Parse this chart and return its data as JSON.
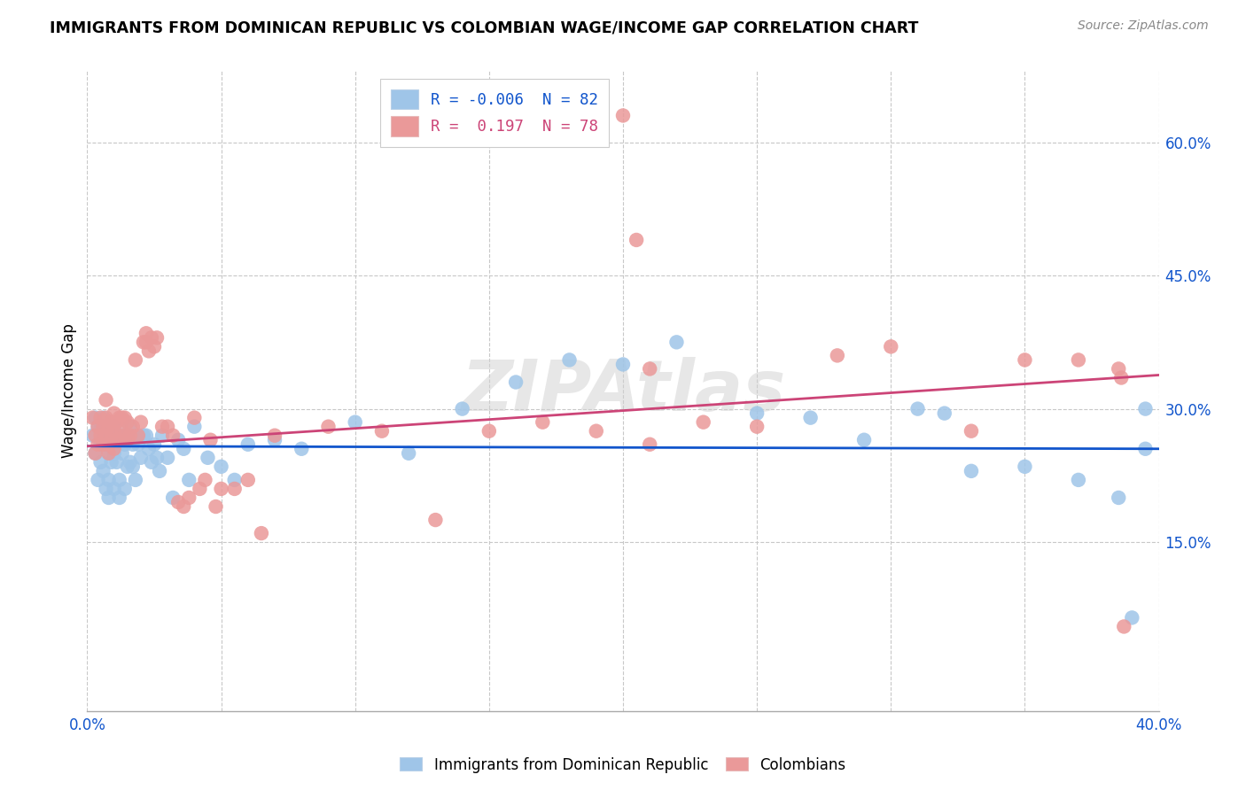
{
  "title": "IMMIGRANTS FROM DOMINICAN REPUBLIC VS COLOMBIAN WAGE/INCOME GAP CORRELATION CHART",
  "source": "Source: ZipAtlas.com",
  "ylabel": "Wage/Income Gap",
  "legend_blue_label": "Immigrants from Dominican Republic",
  "legend_pink_label": "Colombians",
  "blue_color": "#9fc5e8",
  "pink_color": "#ea9999",
  "blue_line_color": "#1155cc",
  "pink_line_color": "#cc4477",
  "blue_r": "-0.006",
  "blue_n": "82",
  "pink_r": "0.197",
  "pink_n": "78",
  "watermark": "ZIPAtlas",
  "blue_x": [
    0.002,
    0.003,
    0.003,
    0.004,
    0.004,
    0.005,
    0.005,
    0.005,
    0.006,
    0.006,
    0.006,
    0.007,
    0.007,
    0.007,
    0.008,
    0.008,
    0.008,
    0.008,
    0.009,
    0.009,
    0.009,
    0.01,
    0.01,
    0.01,
    0.011,
    0.011,
    0.012,
    0.012,
    0.012,
    0.013,
    0.013,
    0.014,
    0.014,
    0.015,
    0.015,
    0.016,
    0.016,
    0.017,
    0.017,
    0.018,
    0.018,
    0.019,
    0.02,
    0.021,
    0.022,
    0.023,
    0.024,
    0.025,
    0.026,
    0.027,
    0.028,
    0.03,
    0.032,
    0.034,
    0.036,
    0.038,
    0.04,
    0.045,
    0.05,
    0.055,
    0.06,
    0.07,
    0.08,
    0.1,
    0.12,
    0.14,
    0.16,
    0.18,
    0.2,
    0.22,
    0.25,
    0.27,
    0.29,
    0.31,
    0.32,
    0.33,
    0.35,
    0.37,
    0.385,
    0.39,
    0.395,
    0.395
  ],
  "blue_y": [
    0.27,
    0.29,
    0.25,
    0.28,
    0.22,
    0.28,
    0.24,
    0.26,
    0.27,
    0.23,
    0.29,
    0.26,
    0.28,
    0.21,
    0.27,
    0.25,
    0.22,
    0.2,
    0.26,
    0.27,
    0.24,
    0.28,
    0.25,
    0.21,
    0.27,
    0.24,
    0.265,
    0.22,
    0.2,
    0.27,
    0.25,
    0.26,
    0.21,
    0.27,
    0.235,
    0.28,
    0.24,
    0.26,
    0.235,
    0.27,
    0.22,
    0.26,
    0.245,
    0.27,
    0.27,
    0.255,
    0.24,
    0.26,
    0.245,
    0.23,
    0.27,
    0.245,
    0.2,
    0.265,
    0.255,
    0.22,
    0.28,
    0.245,
    0.235,
    0.22,
    0.26,
    0.265,
    0.255,
    0.285,
    0.25,
    0.3,
    0.33,
    0.355,
    0.35,
    0.375,
    0.295,
    0.29,
    0.265,
    0.3,
    0.295,
    0.23,
    0.235,
    0.22,
    0.2,
    0.065,
    0.3,
    0.255
  ],
  "pink_x": [
    0.002,
    0.003,
    0.003,
    0.004,
    0.004,
    0.005,
    0.005,
    0.006,
    0.006,
    0.007,
    0.007,
    0.007,
    0.008,
    0.008,
    0.008,
    0.009,
    0.009,
    0.01,
    0.01,
    0.01,
    0.011,
    0.011,
    0.012,
    0.012,
    0.013,
    0.013,
    0.014,
    0.014,
    0.015,
    0.015,
    0.016,
    0.017,
    0.018,
    0.019,
    0.02,
    0.021,
    0.022,
    0.022,
    0.023,
    0.024,
    0.025,
    0.026,
    0.028,
    0.03,
    0.032,
    0.034,
    0.036,
    0.038,
    0.04,
    0.042,
    0.044,
    0.046,
    0.048,
    0.05,
    0.055,
    0.06,
    0.065,
    0.07,
    0.09,
    0.11,
    0.13,
    0.15,
    0.17,
    0.19,
    0.21,
    0.23,
    0.25,
    0.28,
    0.3,
    0.33,
    0.35,
    0.37,
    0.385,
    0.386,
    0.387,
    0.2,
    0.205,
    0.21
  ],
  "pink_y": [
    0.29,
    0.27,
    0.25,
    0.28,
    0.26,
    0.29,
    0.27,
    0.28,
    0.26,
    0.29,
    0.27,
    0.31,
    0.28,
    0.26,
    0.25,
    0.285,
    0.27,
    0.295,
    0.275,
    0.255,
    0.285,
    0.265,
    0.29,
    0.265,
    0.29,
    0.275,
    0.27,
    0.29,
    0.285,
    0.265,
    0.27,
    0.28,
    0.355,
    0.27,
    0.285,
    0.375,
    0.375,
    0.385,
    0.365,
    0.38,
    0.37,
    0.38,
    0.28,
    0.28,
    0.27,
    0.195,
    0.19,
    0.2,
    0.29,
    0.21,
    0.22,
    0.265,
    0.19,
    0.21,
    0.21,
    0.22,
    0.16,
    0.27,
    0.28,
    0.275,
    0.175,
    0.275,
    0.285,
    0.275,
    0.26,
    0.285,
    0.28,
    0.36,
    0.37,
    0.275,
    0.355,
    0.355,
    0.345,
    0.335,
    0.055,
    0.63,
    0.49,
    0.345
  ],
  "blue_trend_x": [
    0.0,
    0.4
  ],
  "blue_trend_y": [
    0.258,
    0.255
  ],
  "pink_trend_x": [
    0.0,
    0.4
  ],
  "pink_trend_y": [
    0.258,
    0.338
  ],
  "xlim": [
    0.0,
    0.4
  ],
  "ylim": [
    -0.04,
    0.68
  ],
  "ytick_vals": [
    0.15,
    0.3,
    0.45,
    0.6
  ],
  "ytick_labels": [
    "15.0%",
    "30.0%",
    "45.0%",
    "60.0%"
  ],
  "xtick_vals": [
    0.0,
    0.05,
    0.1,
    0.15,
    0.2,
    0.25,
    0.3,
    0.35,
    0.4
  ],
  "xtick_show": [
    "0.0%",
    "",
    "",
    "",
    "",
    "",
    "",
    "",
    "40.0%"
  ]
}
